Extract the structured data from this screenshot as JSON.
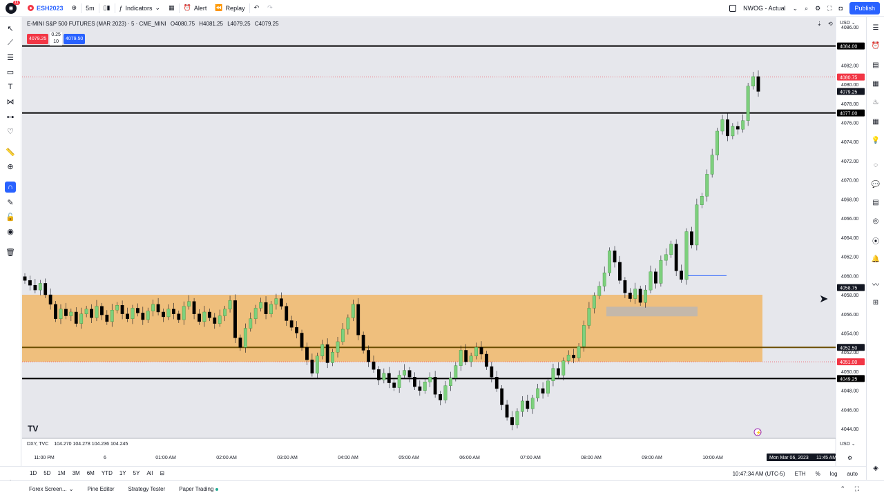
{
  "header": {
    "notif_count": "11",
    "symbol": "ESH2023",
    "interval": "5m",
    "indicators_label": "Indicators",
    "alert_label": "Alert",
    "replay_label": "Replay",
    "layout_name": "NWOG - Actual",
    "publish_label": "Publish"
  },
  "legend": {
    "title": "E-MINI S&P 500 FUTURES (MAR 2023) · 5 · CME_MINI",
    "open": "O4080.75",
    "high": "H4081.25",
    "low": "L4079.25",
    "close": "C4079.25",
    "bid": "4079.25",
    "ask": "4079.50",
    "spread_top": "0.25",
    "spread_bottom": "10"
  },
  "sub_legend": {
    "symbol": "DXY, TVC",
    "values": "104.270  104.278  104.236  104.245"
  },
  "price_axis": {
    "currency": "USD",
    "ticks": [
      "4086.00",
      "4084.00",
      "4082.00",
      "4080.00",
      "4078.00",
      "4076.00",
      "4074.00",
      "4072.00",
      "4070.00",
      "4068.00",
      "4066.00",
      "4064.00",
      "4062.00",
      "4060.00",
      "4058.00",
      "4056.00",
      "4054.00",
      "4052.00",
      "4050.00",
      "4048.00",
      "4046.00",
      "4044.00"
    ],
    "bottom_currency": "USD"
  },
  "chart_data": {
    "type": "candlestick",
    "y_range": [
      4043,
      4087
    ],
    "horizontal_lines": [
      {
        "price": 4084.0,
        "label": "4084.00",
        "color": "#000000"
      },
      {
        "price": 4077.0,
        "label": "4077.00",
        "color": "#000000"
      },
      {
        "price": 4052.5,
        "label": "4052.50",
        "color": "#6b4e00"
      },
      {
        "price": 4049.25,
        "label": "4049.25",
        "color": "#000000"
      }
    ],
    "price_labels": [
      {
        "price": 4080.75,
        "label": "4080.75",
        "color": "#f23645"
      },
      {
        "price": 4079.25,
        "label": "4079.25",
        "color": "#131722"
      },
      {
        "price": 4058.75,
        "label": "4058.75",
        "color": "#131722"
      },
      {
        "price": 4051.0,
        "label": "4051.00",
        "color": "#f23645"
      }
    ],
    "zone": {
      "top": 4058.0,
      "bottom": 4051.0,
      "color": "#f0b76a"
    },
    "small_zone": {
      "top": 4056.75,
      "bottom": 4055.75
    },
    "time_labels": [
      "11:00 PM",
      "6",
      "01:00 AM",
      "02:00 AM",
      "03:00 AM",
      "04:00 AM",
      "05:00 AM",
      "06:00 AM",
      "07:00 AM",
      "08:00 AM",
      "09:00 AM",
      "10:00 AM"
    ],
    "crosshair_time": "Mon Mar 06, 2023",
    "crosshair_clock": "11:45 AM",
    "closes": [
      4059.5,
      4059.0,
      4058.5,
      4059.2,
      4058.0,
      4057.0,
      4055.5,
      4056.5,
      4055.8,
      4056.2,
      4055.0,
      4056.0,
      4056.5,
      4055.6,
      4056.8,
      4055.9,
      4055.2,
      4056.4,
      4056.9,
      4056.0,
      4055.5,
      4056.6,
      4056.1,
      4055.4,
      4056.3,
      4057.0,
      4056.2,
      4055.7,
      4056.5,
      4056.0,
      4055.4,
      4056.8,
      4057.3,
      4056.0,
      4055.2,
      4056.2,
      4055.6,
      4055.0,
      4055.8,
      4056.5,
      4057.4,
      4053.5,
      4052.5,
      4054.5,
      4055.5,
      4056.6,
      4057.2,
      4056.0,
      4057.0,
      4057.6,
      4056.8,
      4055.3,
      4054.6,
      4054.0,
      4052.5,
      4051.2,
      4049.8,
      4051.6,
      4052.8,
      4050.9,
      4052.0,
      4053.1,
      4054.4,
      4055.6,
      4057.0,
      4053.8,
      4052.2,
      4051.0,
      4050.2,
      4049.1,
      4049.8,
      4048.8,
      4048.3,
      4049.6,
      4050.1,
      4049.4,
      4048.4,
      4048.0,
      4048.9,
      4049.4,
      4047.6,
      4047.0,
      4048.5,
      4049.3,
      4050.6,
      4052.2,
      4051.0,
      4051.6,
      4052.5,
      4051.8,
      4050.5,
      4049.4,
      4048.2,
      4046.5,
      4045.2,
      4044.4,
      4045.8,
      4046.9,
      4046.1,
      4047.2,
      4048.2,
      4047.7,
      4049.0,
      4050.3,
      4049.6,
      4051.1,
      4051.7,
      4051.4,
      4052.6,
      4054.8,
      4056.6,
      4057.9,
      4058.9,
      4060.3,
      4062.6,
      4061.4,
      4059.5,
      4058.2,
      4057.6,
      4058.6,
      4057.2,
      4058.5,
      4060.4,
      4059.2,
      4061.6,
      4062.2,
      4063.3,
      4060.5,
      4059.6,
      4064.6,
      4063.2,
      4067.4,
      4068.3,
      4070.6,
      4072.6,
      4075.1,
      4076.3,
      4074.6,
      4075.6,
      4075.3,
      4076.2,
      4079.8,
      4080.8,
      4079.25
    ]
  },
  "timebar": {
    "ranges": [
      "1D",
      "5D",
      "1M",
      "3M",
      "6M",
      "YTD",
      "1Y",
      "5Y",
      "All"
    ],
    "clock": "10:47:34 AM (UTC-5)",
    "session": "ETH",
    "pct": "%",
    "log": "log",
    "auto": "auto"
  },
  "bottom": {
    "forex": "Forex Screen...",
    "pine": "Pine Editor",
    "strategy": "Strategy Tester",
    "paper": "Paper Trading"
  },
  "watermark": "TV"
}
